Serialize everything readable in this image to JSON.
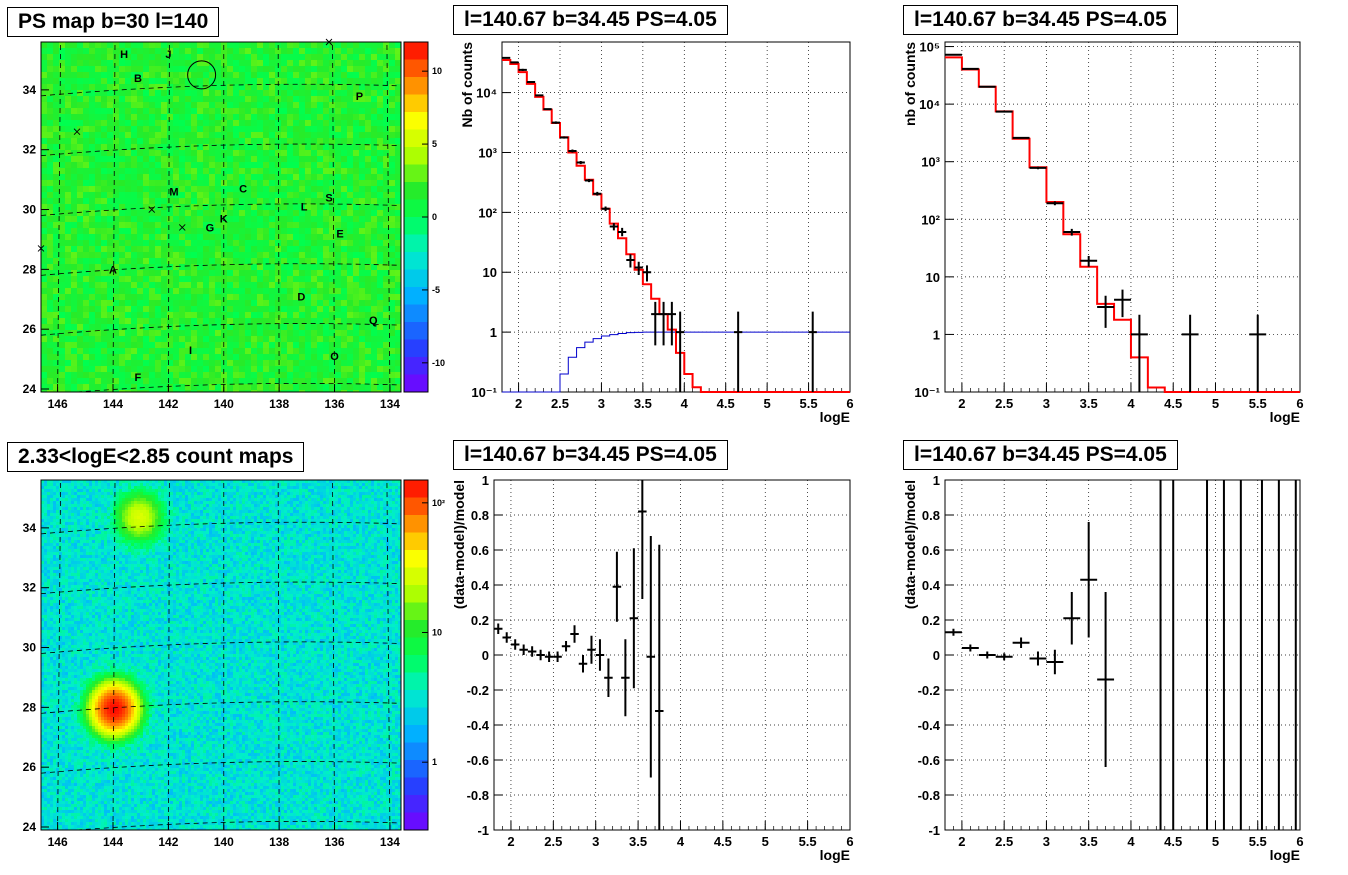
{
  "colors": {
    "red_model": "#ff0000",
    "blue_curve": "#0000cc",
    "data": "#000000"
  },
  "chart_data": [
    {
      "id": "ps-map",
      "type": "heatmap",
      "title": "PS map b=30 l=140",
      "x_ticks": [
        "146",
        "144",
        "142",
        "140",
        "138",
        "136",
        "134"
      ],
      "y_ticks": [
        "24",
        "26",
        "28",
        "30",
        "32",
        "34"
      ],
      "xlim": [
        146.6,
        133.6
      ],
      "ylim": [
        23.9,
        35.6
      ],
      "colorbar": {
        "min": -12,
        "max": 12,
        "ticks": [
          "10",
          "5",
          "0",
          "-5",
          "-10"
        ],
        "tick_values": [
          10,
          5,
          0,
          -5,
          -10
        ]
      },
      "sources": [
        {
          "label": "H",
          "l": 143.6,
          "b": 35.2
        },
        {
          "label": "J",
          "l": 142.0,
          "b": 35.2
        },
        {
          "label": "B",
          "l": 143.1,
          "b": 34.4
        },
        {
          "label": "P",
          "l": 135.1,
          "b": 33.8
        },
        {
          "label": "C",
          "l": 139.3,
          "b": 30.7
        },
        {
          "label": "M",
          "l": 141.8,
          "b": 30.6
        },
        {
          "label": "L",
          "l": 137.1,
          "b": 30.1
        },
        {
          "label": "S",
          "l": 136.2,
          "b": 30.4
        },
        {
          "label": "K",
          "l": 140.0,
          "b": 29.7
        },
        {
          "label": "G",
          "l": 140.5,
          "b": 29.4
        },
        {
          "label": "E",
          "l": 135.8,
          "b": 29.2
        },
        {
          "label": "A",
          "l": 144.0,
          "b": 28.0
        },
        {
          "label": "D",
          "l": 137.2,
          "b": 27.1
        },
        {
          "label": "Q",
          "l": 134.6,
          "b": 26.3
        },
        {
          "label": "I",
          "l": 141.2,
          "b": 25.3
        },
        {
          "label": "O",
          "l": 136.0,
          "b": 25.1
        },
        {
          "label": "F",
          "l": 143.1,
          "b": 24.4
        }
      ],
      "crosses": [
        {
          "l": 136.2,
          "b": 35.6
        },
        {
          "l": 145.3,
          "b": 32.6
        },
        {
          "l": 142.6,
          "b": 30.0
        },
        {
          "l": 141.5,
          "b": 29.4
        },
        {
          "l": 146.6,
          "b": 28.7
        }
      ],
      "circle": {
        "l": 140.8,
        "b": 34.5
      }
    },
    {
      "id": "count-map",
      "type": "heatmap",
      "title": "2.33<logE<2.85 count maps",
      "x_ticks": [
        "146",
        "144",
        "142",
        "140",
        "138",
        "136",
        "134"
      ],
      "y_ticks": [
        "24",
        "26",
        "28",
        "30",
        "32",
        "34"
      ],
      "xlim": [
        146.6,
        133.6
      ],
      "ylim": [
        23.9,
        35.6
      ],
      "colorbar": {
        "scale": "log",
        "min": 0.3,
        "max": 150,
        "ticks": [
          "10²",
          "10",
          "1"
        ],
        "tick_values": [
          100,
          10,
          1
        ]
      },
      "hot_spots": [
        {
          "label": "A",
          "l": 144.0,
          "b": 28.0,
          "peak": 140
        },
        {
          "label": "B",
          "l": 143.1,
          "b": 34.4,
          "peak": 25
        }
      ]
    },
    {
      "id": "spectrum",
      "type": "line",
      "title": "l=140.67 b=34.45 PS=4.05",
      "xlabel": "logE",
      "ylabel": "Nb of counts",
      "xlim": [
        1.8,
        6.0
      ],
      "ylim": [
        0.1,
        70000
      ],
      "yscale": "log",
      "x_ticks": [
        2,
        2.5,
        3,
        3.5,
        4,
        4.5,
        5,
        5.5,
        6
      ],
      "y_ticks": [
        {
          "v": 0.1,
          "label": "10⁻¹"
        },
        {
          "v": 1,
          "label": "1"
        },
        {
          "v": 10,
          "label": "10"
        },
        {
          "v": 100,
          "label": "10²"
        },
        {
          "v": 1000,
          "label": "10³"
        },
        {
          "v": 10000,
          "label": "10⁴"
        }
      ],
      "grid": true,
      "bin_edges": [
        1.8,
        1.9,
        2.0,
        2.1,
        2.2,
        2.3,
        2.4,
        2.5,
        2.6,
        2.7,
        2.8,
        2.9,
        3.0,
        3.1,
        3.2,
        3.3,
        3.4,
        3.5,
        3.6,
        3.7,
        3.8,
        3.9,
        4.0,
        4.1,
        4.2,
        4.3,
        4.4,
        4.5,
        4.6,
        4.7,
        4.8,
        4.9,
        5.0,
        5.1,
        5.2,
        5.3,
        5.4,
        5.5,
        5.6,
        5.7,
        5.8,
        5.9,
        6.0
      ],
      "model": [
        35000,
        30000,
        22000,
        14000,
        8500,
        5200,
        3100,
        1800,
        1000,
        600,
        350,
        200,
        115,
        65,
        37,
        20,
        11,
        6.3,
        3.6,
        2.0,
        1.1,
        0.45,
        0.2,
        0.12,
        0.1,
        0.1,
        0.1,
        0.1,
        0.1,
        0.1,
        0.1,
        0.1,
        0.1,
        0.1,
        0.1,
        0.1,
        0.1,
        0.1,
        0.1,
        0.1,
        0.1,
        0.1
      ],
      "acceptance": [
        0.01,
        0.01,
        0.01,
        0.01,
        0.01,
        0.03,
        0.08,
        0.2,
        0.38,
        0.55,
        0.68,
        0.78,
        0.86,
        0.91,
        0.95,
        0.98,
        0.99,
        1.0,
        1.0,
        1.0,
        1.0,
        1.0,
        1.0,
        1.0,
        1.0,
        1.0,
        1.0,
        1.0,
        1.0,
        1.0,
        1.0,
        1.0,
        1.0,
        1.0,
        1.0,
        1.0,
        1.0,
        1.0,
        1.0,
        1.0,
        1.0,
        1.0
      ],
      "data_points": [
        {
          "x": 1.85,
          "y": 38000,
          "lo": 37000,
          "hi": 39000
        },
        {
          "x": 1.95,
          "y": 32000,
          "lo": 31000,
          "hi": 33000
        },
        {
          "x": 2.05,
          "y": 24000,
          "lo": 23000,
          "hi": 25000
        },
        {
          "x": 2.15,
          "y": 15000,
          "lo": 14500,
          "hi": 15500
        },
        {
          "x": 2.25,
          "y": 9000,
          "lo": 8700,
          "hi": 9300
        },
        {
          "x": 2.35,
          "y": 5300,
          "lo": 5100,
          "hi": 5500
        },
        {
          "x": 2.45,
          "y": 3150,
          "lo": 3000,
          "hi": 3300
        },
        {
          "x": 2.55,
          "y": 1780,
          "lo": 1700,
          "hi": 1860
        },
        {
          "x": 2.65,
          "y": 1060,
          "lo": 1000,
          "hi": 1120
        },
        {
          "x": 2.75,
          "y": 680,
          "lo": 640,
          "hi": 720
        },
        {
          "x": 2.85,
          "y": 340,
          "lo": 320,
          "hi": 360
        },
        {
          "x": 2.95,
          "y": 205,
          "lo": 190,
          "hi": 220
        },
        {
          "x": 3.05,
          "y": 115,
          "lo": 105,
          "hi": 125
        },
        {
          "x": 3.15,
          "y": 58,
          "lo": 50,
          "hi": 66
        },
        {
          "x": 3.25,
          "y": 47,
          "lo": 40,
          "hi": 55
        },
        {
          "x": 3.35,
          "y": 16,
          "lo": 12,
          "hi": 20
        },
        {
          "x": 3.45,
          "y": 12,
          "lo": 9,
          "hi": 15
        },
        {
          "x": 3.55,
          "y": 10,
          "lo": 7,
          "hi": 13
        },
        {
          "x": 3.65,
          "y": 2,
          "lo": 0.6,
          "hi": 3.2
        },
        {
          "x": 3.75,
          "y": 2,
          "lo": 0.6,
          "hi": 3.2
        },
        {
          "x": 3.85,
          "y": 2,
          "lo": 0.6,
          "hi": 3.2
        },
        {
          "x": 3.95,
          "y": 1,
          "lo": 0.1,
          "hi": 2.2
        },
        {
          "x": 4.65,
          "y": 1,
          "lo": 0.1,
          "hi": 2.2
        },
        {
          "x": 5.55,
          "y": 1,
          "lo": 0.1,
          "hi": 2.2
        }
      ]
    },
    {
      "id": "spectrum-rebinned",
      "type": "line",
      "title": "l=140.67 b=34.45 PS=4.05",
      "xlabel": "logE",
      "ylabel": "nb of counts",
      "xlim": [
        1.8,
        6.0
      ],
      "ylim": [
        0.1,
        120000
      ],
      "yscale": "log",
      "x_ticks": [
        2,
        2.5,
        3,
        3.5,
        4,
        4.5,
        5,
        5.5,
        6
      ],
      "y_ticks": [
        {
          "v": 0.1,
          "label": "10⁻¹"
        },
        {
          "v": 1,
          "label": "1"
        },
        {
          "v": 10,
          "label": "10"
        },
        {
          "v": 100,
          "label": "10²"
        },
        {
          "v": 1000,
          "label": "10³"
        },
        {
          "v": 10000,
          "label": "10⁴"
        },
        {
          "v": 100000,
          "label": "10⁵"
        }
      ],
      "grid": true,
      "bin_edges": [
        1.8,
        2.0,
        2.2,
        2.4,
        2.6,
        2.8,
        3.0,
        3.2,
        3.4,
        3.6,
        3.8,
        4.0,
        4.2,
        4.4,
        4.6,
        4.8,
        5.0,
        5.2,
        5.4,
        5.6,
        5.8,
        6.0
      ],
      "model": [
        65000,
        40000,
        20000,
        7500,
        2500,
        800,
        200,
        55,
        15,
        3.4,
        1.8,
        0.4,
        0.12,
        0.1,
        0.1,
        0.1,
        0.1,
        0.1,
        0.1,
        0.1,
        0.1
      ],
      "data_points": [
        {
          "x": 1.9,
          "y": 72000,
          "lo": 70000,
          "hi": 74000
        },
        {
          "x": 2.1,
          "y": 41000,
          "lo": 40000,
          "hi": 42000
        },
        {
          "x": 2.3,
          "y": 20000,
          "lo": 19500,
          "hi": 20500
        },
        {
          "x": 2.5,
          "y": 7400,
          "lo": 7200,
          "hi": 7600
        },
        {
          "x": 2.7,
          "y": 2600,
          "lo": 2500,
          "hi": 2700
        },
        {
          "x": 2.9,
          "y": 780,
          "lo": 740,
          "hi": 820
        },
        {
          "x": 3.1,
          "y": 190,
          "lo": 175,
          "hi": 205
        },
        {
          "x": 3.3,
          "y": 60,
          "lo": 52,
          "hi": 68
        },
        {
          "x": 3.5,
          "y": 19,
          "lo": 15,
          "hi": 23
        },
        {
          "x": 3.7,
          "y": 3,
          "lo": 1.3,
          "hi": 4.7
        },
        {
          "x": 3.9,
          "y": 4,
          "lo": 2,
          "hi": 6
        },
        {
          "x": 4.1,
          "y": 1,
          "lo": 0.1,
          "hi": 2.2
        },
        {
          "x": 4.7,
          "y": 1,
          "lo": 0.1,
          "hi": 2.2
        },
        {
          "x": 5.5,
          "y": 1,
          "lo": 0.1,
          "hi": 2.2
        }
      ]
    },
    {
      "id": "residuals",
      "type": "scatter",
      "title": "l=140.67 b=34.45 PS=4.05",
      "xlabel": "logE",
      "ylabel": "(data-model)/model",
      "xlim": [
        1.8,
        6.0
      ],
      "ylim": [
        -1,
        1
      ],
      "x_ticks": [
        2,
        2.5,
        3,
        3.5,
        4,
        4.5,
        5,
        5.5,
        6
      ],
      "y_ticks": [
        1,
        0.8,
        0.6,
        0.4,
        0.2,
        0,
        -0.2,
        -0.4,
        -0.6,
        -0.8,
        -1
      ],
      "grid": true,
      "half_bin": 0.05,
      "points": [
        {
          "x": 1.85,
          "y": 0.15,
          "e": 0.03
        },
        {
          "x": 1.95,
          "y": 0.1,
          "e": 0.03
        },
        {
          "x": 2.05,
          "y": 0.06,
          "e": 0.03
        },
        {
          "x": 2.15,
          "y": 0.03,
          "e": 0.03
        },
        {
          "x": 2.25,
          "y": 0.02,
          "e": 0.03
        },
        {
          "x": 2.35,
          "y": 0.0,
          "e": 0.03
        },
        {
          "x": 2.45,
          "y": -0.01,
          "e": 0.03
        },
        {
          "x": 2.55,
          "y": -0.01,
          "e": 0.03
        },
        {
          "x": 2.65,
          "y": 0.05,
          "e": 0.03
        },
        {
          "x": 2.75,
          "y": 0.12,
          "e": 0.05
        },
        {
          "x": 2.85,
          "y": -0.05,
          "e": 0.05
        },
        {
          "x": 2.95,
          "y": 0.03,
          "e": 0.08
        },
        {
          "x": 3.05,
          "y": 0.0,
          "e": 0.09
        },
        {
          "x": 3.15,
          "y": -0.13,
          "e": 0.11
        },
        {
          "x": 3.25,
          "y": 0.39,
          "e": 0.2
        },
        {
          "x": 3.35,
          "y": -0.13,
          "e": 0.22
        },
        {
          "x": 3.45,
          "y": 0.21,
          "e": 0.4
        },
        {
          "x": 3.55,
          "y": 0.82,
          "e": 0.5
        },
        {
          "x": 3.65,
          "y": -0.01,
          "e": 0.69
        },
        {
          "x": 3.75,
          "y": -0.32,
          "e": 0.95
        }
      ]
    },
    {
      "id": "residuals-rebinned",
      "type": "scatter",
      "title": "l=140.67 b=34.45 PS=4.05",
      "xlabel": "logE",
      "ylabel": "(data-model)/model",
      "xlim": [
        1.8,
        6.0
      ],
      "ylim": [
        -1,
        1
      ],
      "x_ticks": [
        2,
        2.5,
        3,
        3.5,
        4,
        4.5,
        5,
        5.5,
        6
      ],
      "y_ticks": [
        1,
        0.8,
        0.6,
        0.4,
        0.2,
        0,
        -0.2,
        -0.4,
        -0.6,
        -0.8,
        -1
      ],
      "grid": true,
      "half_bin": 0.1,
      "points": [
        {
          "x": 1.9,
          "y": 0.13,
          "e": 0.02
        },
        {
          "x": 2.1,
          "y": 0.04,
          "e": 0.02
        },
        {
          "x": 2.3,
          "y": 0.0,
          "e": 0.02
        },
        {
          "x": 2.5,
          "y": -0.01,
          "e": 0.02
        },
        {
          "x": 2.7,
          "y": 0.07,
          "e": 0.03
        },
        {
          "x": 2.9,
          "y": -0.02,
          "e": 0.04
        },
        {
          "x": 3.1,
          "y": -0.04,
          "e": 0.07
        },
        {
          "x": 3.3,
          "y": 0.21,
          "e": 0.15
        },
        {
          "x": 3.5,
          "y": 0.43,
          "e": 0.33
        },
        {
          "x": 3.7,
          "y": -0.14,
          "e": 0.5
        }
      ],
      "full_bars_x": [
        4.35,
        4.5,
        4.9,
        5.1,
        5.3,
        5.55,
        5.75,
        5.95
      ]
    }
  ]
}
